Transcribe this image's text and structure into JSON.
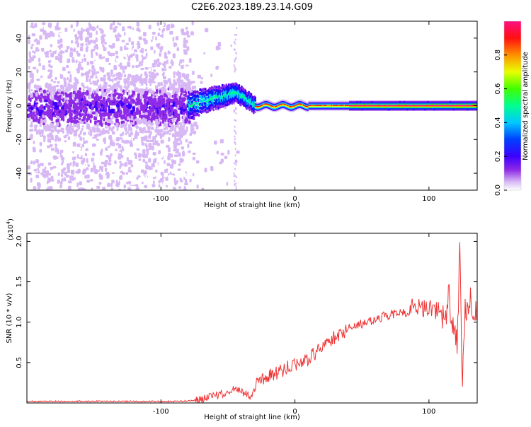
{
  "title": "C2E6.2023.189.23.14.G09",
  "chart_data": [
    {
      "type": "heatmap",
      "xlabel": "Height of straight line (km)",
      "ylabel": "Frequency (Hz)",
      "xlim": [
        -200,
        136
      ],
      "ylim": [
        -50,
        50
      ],
      "xticks": [
        -100,
        0,
        100
      ],
      "yticks": [
        -40,
        -20,
        0,
        20,
        40
      ],
      "colorbar": {
        "label": "Normalized spectral amplitude",
        "range": [
          0.0,
          1.0
        ],
        "ticks": [
          0.0,
          0.2,
          0.4,
          0.6,
          0.8
        ],
        "colormap": [
          "#ffffff",
          "#d7b8f5",
          "#8f2ae6",
          "#3d00ff",
          "#0020ff",
          "#00c8ff",
          "#00ff90",
          "#40ff00",
          "#e8ff00",
          "#ff9000",
          "#ff1010",
          "#ff1080"
        ]
      },
      "features": {
        "noise_region_x": [
          -200,
          -80
        ],
        "noise_band_halfwidth_hz": 8,
        "transition_x": [
          -80,
          -30
        ],
        "transition_peak": {
          "x": -45,
          "y": 8
        },
        "steady_line_x": [
          -30,
          136
        ],
        "steady_line_y": 0
      }
    },
    {
      "type": "line",
      "xlabel": "Height of straight line (km)",
      "ylabel": "SNR (10 * v/v)",
      "y_multiplier_label": "(x10",
      "y_multiplier_exp": "4",
      "y_multiplier_close": ")",
      "xlim": [
        -200,
        136
      ],
      "ylim": [
        0,
        2.1
      ],
      "xticks": [
        -100,
        0,
        100
      ],
      "yticks": [
        0.5,
        1.0,
        1.5,
        2.0
      ],
      "ytick_labels": [
        "0.5",
        "1.0",
        "1.5",
        "2.0"
      ],
      "color": "#ee3333",
      "x": [
        -200,
        -170,
        -140,
        -110,
        -90,
        -75,
        -65,
        -55,
        -48,
        -43,
        -38,
        -33,
        -30,
        -25,
        -20,
        -15,
        -10,
        -5,
        0,
        5,
        10,
        15,
        20,
        25,
        30,
        35,
        40,
        45,
        50,
        55,
        60,
        65,
        70,
        75,
        80,
        85,
        88,
        92,
        96,
        100,
        104,
        108,
        110,
        112,
        115,
        117,
        119,
        121,
        122,
        123,
        124,
        125,
        127,
        129,
        131,
        133,
        136
      ],
      "y": [
        0.02,
        0.02,
        0.02,
        0.02,
        0.02,
        0.03,
        0.06,
        0.11,
        0.15,
        0.18,
        0.12,
        0.08,
        0.2,
        0.28,
        0.34,
        0.36,
        0.4,
        0.44,
        0.48,
        0.52,
        0.55,
        0.62,
        0.7,
        0.76,
        0.82,
        0.86,
        0.92,
        0.96,
        0.98,
        1.01,
        1.04,
        1.07,
        1.09,
        1.1,
        1.11,
        1.14,
        1.23,
        1.2,
        1.15,
        1.22,
        1.1,
        1.18,
        1.08,
        1.0,
        1.35,
        0.95,
        1.02,
        0.75,
        1.25,
        2.08,
        0.9,
        0.3,
        1.25,
        1.05,
        1.28,
        1.0,
        1.2
      ]
    }
  ]
}
